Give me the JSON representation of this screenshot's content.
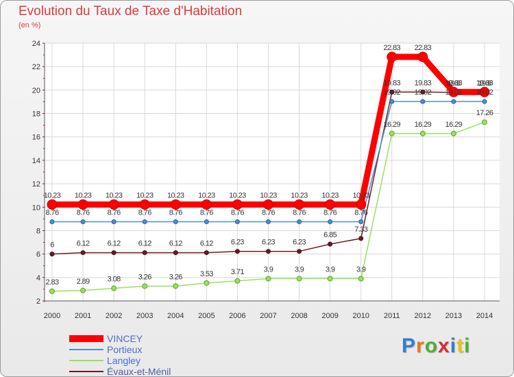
{
  "chart_data": {
    "type": "line",
    "title": "Evolution du Taux de Taxe d'Habitation",
    "subtitle": "(en %)",
    "x": [
      "2000",
      "2001",
      "2002",
      "2003",
      "2004",
      "2005",
      "2006",
      "2007",
      "2008",
      "2009",
      "2010",
      "2011",
      "2012",
      "2013",
      "2014"
    ],
    "ylim": [
      2,
      24
    ],
    "yticks": [
      2,
      4,
      6,
      8,
      10,
      12,
      14,
      16,
      18,
      20,
      22,
      24
    ],
    "grid": true,
    "legend_position": "bottom-left",
    "series": [
      {
        "name": "VINCEY",
        "color": "#ff0000",
        "values": [
          10.23,
          10.23,
          10.23,
          10.23,
          10.23,
          10.23,
          10.23,
          10.23,
          10.23,
          10.23,
          10.23,
          22.83,
          22.83,
          19.83,
          19.83
        ],
        "labels": [
          "10.23",
          "10.23",
          "10.23",
          "10.23",
          "10.23",
          "10.23",
          "10.23",
          "10.23",
          "10.23",
          "10.23",
          "10.23",
          "22.83",
          "22.83",
          "19.83",
          "19.83"
        ]
      },
      {
        "name": "Portieux",
        "color": "#4a8fd4",
        "values": [
          8.76,
          8.76,
          8.76,
          8.76,
          8.76,
          8.76,
          8.76,
          8.76,
          8.76,
          8.76,
          8.76,
          19.02,
          19.02,
          19.02,
          19.02
        ],
        "labels": [
          "8.76",
          "8.76",
          "8.76",
          "8.76",
          "8.76",
          "8.76",
          "8.76",
          "8.76",
          "8.76",
          "8.76",
          "8.76",
          "19.02",
          "19.02",
          "19.02",
          "19.02"
        ]
      },
      {
        "name": "Langley",
        "color": "#99e060",
        "values": [
          2.83,
          2.89,
          3.08,
          3.26,
          3.26,
          3.53,
          3.71,
          3.9,
          3.9,
          3.9,
          3.9,
          16.29,
          16.29,
          16.29,
          17.26
        ],
        "labels": [
          "2.83",
          "2.89",
          "3.08",
          "3.26",
          "3.26",
          "3.53",
          "3.71",
          "3.9",
          "3.9",
          "3.9",
          "3.9",
          "16.29",
          "16.29",
          "16.29",
          "17.26"
        ]
      },
      {
        "name": "Évaux-et-Ménil",
        "color": "#6b1d25",
        "values": [
          6,
          6.12,
          6.12,
          6.12,
          6.12,
          6.12,
          6.23,
          6.23,
          6.23,
          6.85,
          7.33,
          19.83,
          19.83,
          19.8,
          19.8
        ],
        "labels": [
          "6",
          "6.12",
          "6.12",
          "6.12",
          "6.12",
          "6.12",
          "6.23",
          "6.23",
          "6.23",
          "6.85",
          "7.33",
          "19.83",
          "19.83",
          "19.8",
          "19.8"
        ]
      }
    ]
  },
  "logo": {
    "text": "Proxiti"
  }
}
